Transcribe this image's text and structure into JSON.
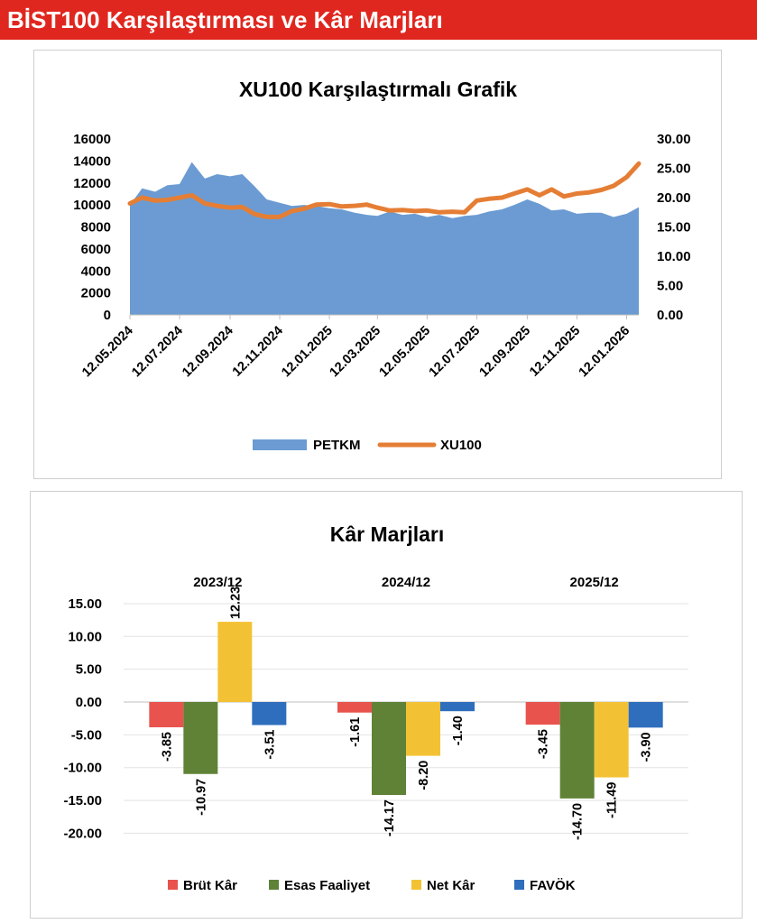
{
  "header": {
    "title": "BİST100 Karşılaştırması ve Kâr Marjları",
    "bg_color": "#e0271f"
  },
  "chart_data": [
    {
      "type": "area",
      "title": "XU100 Karşılaştırmalı  Grafik",
      "x_ticks": [
        "12.05.2024",
        "12.07.2024",
        "12.09.2024",
        "12.11.2024",
        "12.01.2025",
        "12.03.2025",
        "12.05.2025",
        "12.07.2025",
        "12.09.2025",
        "12.11.2025",
        "12.01.2026"
      ],
      "y_left": {
        "ticks": [
          "0",
          "2000",
          "4000",
          "6000",
          "8000",
          "10000",
          "12000",
          "14000",
          "16000"
        ],
        "range": [
          0,
          16000
        ]
      },
      "y_right": {
        "ticks": [
          "0.00",
          "5.00",
          "10.00",
          "15.00",
          "20.00",
          "25.00",
          "30.00"
        ],
        "range": [
          0,
          30
        ]
      },
      "series": [
        {
          "name": "PETKM",
          "type": "area",
          "axis": "left",
          "color": "#6b9bd2",
          "x": [
            "12.05.2024",
            "27.05.2024",
            "12.06.2024",
            "27.06.2024",
            "12.07.2024",
            "27.07.2024",
            "12.08.2024",
            "27.08.2024",
            "12.09.2024",
            "27.09.2024",
            "12.10.2024",
            "27.10.2024",
            "12.11.2024",
            "27.11.2024",
            "12.12.2024",
            "27.12.2024",
            "12.01.2025",
            "27.01.2025",
            "12.02.2025",
            "27.02.2025",
            "12.03.2025",
            "27.03.2025",
            "12.04.2025",
            "27.04.2025",
            "12.05.2025",
            "27.05.2025",
            "12.06.2025",
            "27.06.2025",
            "12.07.2025",
            "27.07.2025",
            "12.08.2025",
            "27.08.2025",
            "12.09.2025",
            "27.09.2025",
            "12.10.2025",
            "27.10.2025",
            "12.11.2025",
            "27.11.2025",
            "12.12.2025",
            "27.12.2025",
            "12.01.2026",
            "27.01.2026"
          ],
          "values": [
            10000,
            11500,
            11200,
            11800,
            11900,
            13900,
            12400,
            12800,
            12600,
            12800,
            11700,
            10500,
            10200,
            9900,
            10000,
            9900,
            9700,
            9600,
            9300,
            9100,
            9000,
            9400,
            9100,
            9200,
            8900,
            9100,
            8800,
            9000,
            9100,
            9400,
            9600,
            10000,
            10500,
            10100,
            9500,
            9600,
            9200,
            9300,
            9300,
            8900,
            9200,
            9800
          ]
        },
        {
          "name": "XU100",
          "type": "line",
          "axis": "right",
          "color": "#e57e35",
          "x": [
            "12.05.2024",
            "27.05.2024",
            "12.06.2024",
            "27.06.2024",
            "12.07.2024",
            "27.07.2024",
            "12.08.2024",
            "27.08.2024",
            "12.09.2024",
            "27.09.2024",
            "12.10.2024",
            "27.10.2024",
            "12.11.2024",
            "27.11.2024",
            "12.12.2024",
            "27.12.2024",
            "12.01.2025",
            "27.01.2025",
            "12.02.2025",
            "27.02.2025",
            "12.03.2025",
            "27.03.2025",
            "12.04.2025",
            "27.04.2025",
            "12.05.2025",
            "27.05.2025",
            "12.06.2025",
            "27.06.2025",
            "12.07.2025",
            "27.07.2025",
            "12.08.2025",
            "27.08.2025",
            "12.09.2025",
            "27.09.2025",
            "12.10.2025",
            "27.10.2025",
            "12.11.2025",
            "27.11.2025",
            "12.12.2025",
            "27.12.2025",
            "12.01.2026",
            "27.01.2026"
          ],
          "values": [
            19.0,
            20.0,
            19.5,
            19.6,
            20.0,
            20.4,
            19.0,
            18.6,
            18.3,
            18.4,
            17.2,
            16.7,
            16.7,
            17.7,
            18.1,
            18.8,
            18.9,
            18.5,
            18.6,
            18.8,
            18.3,
            17.8,
            17.9,
            17.7,
            17.8,
            17.5,
            17.6,
            17.5,
            19.5,
            19.8,
            20.0,
            20.7,
            21.4,
            20.4,
            21.4,
            20.2,
            20.7,
            20.9,
            21.3,
            22.0,
            23.5,
            25.8
          ]
        }
      ],
      "legend": {
        "position": "bottom"
      }
    },
    {
      "type": "bar",
      "title": "Kâr Marjları",
      "categories": [
        "2023/12",
        "2024/12",
        "2025/12"
      ],
      "y_ticks": [
        "15.00",
        "10.00",
        "5.00",
        "0.00",
        "-5.00",
        "-10.00",
        "-15.00",
        "-20.00"
      ],
      "ylim": [
        -20,
        15
      ],
      "series": [
        {
          "name": "Brüt Kâr",
          "color": "#e8534d",
          "values": [
            -3.85,
            -1.61,
            -3.45
          ],
          "labels": [
            "-3.85",
            "-1.61",
            "-3.45"
          ]
        },
        {
          "name": "Esas Faaliyet",
          "color": "#5f8236",
          "values": [
            -10.97,
            -14.17,
            -14.7
          ],
          "labels": [
            "-10.97",
            "-14.17",
            "-14.70"
          ]
        },
        {
          "name": "Net Kâr",
          "color": "#f3c234",
          "values": [
            12.23,
            -8.2,
            -11.49
          ],
          "labels": [
            "12.23",
            "-8.20",
            "-11.49"
          ]
        },
        {
          "name": "FAVÖK",
          "color": "#2f6ebd",
          "values": [
            -3.51,
            -1.4,
            -3.9
          ],
          "labels": [
            "-3.51",
            "-1.40",
            "-3.90"
          ]
        }
      ],
      "legend": {
        "position": "bottom"
      }
    }
  ]
}
